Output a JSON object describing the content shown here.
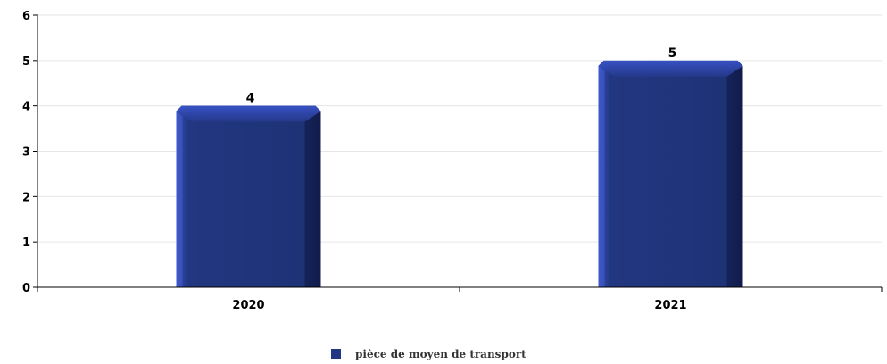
{
  "chart_data": {
    "type": "bar",
    "categories": [
      "2020",
      "2021"
    ],
    "series": [
      {
        "name": "pièce de moyen de transport",
        "values": [
          4,
          5
        ],
        "color": "#223781"
      }
    ],
    "ylim": [
      0,
      6
    ],
    "yticks": [
      "0",
      "1",
      "2",
      "3",
      "4",
      "5",
      "6"
    ],
    "grid": true,
    "legend_position": "bottom-center",
    "data_labels": true
  }
}
